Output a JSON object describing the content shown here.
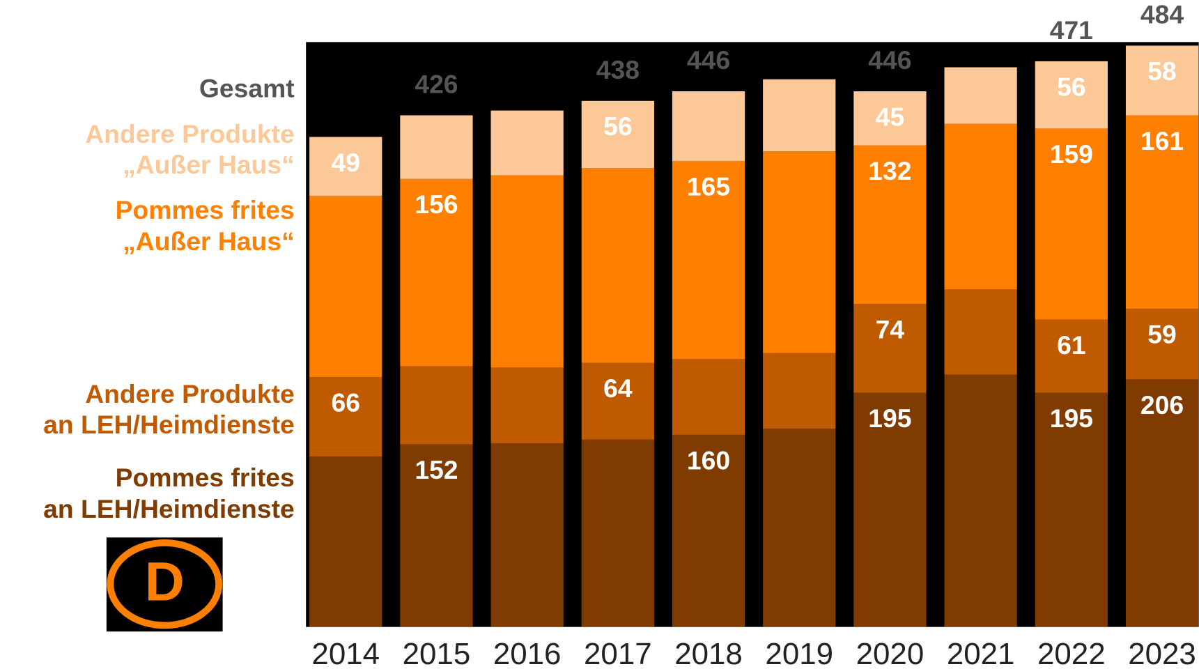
{
  "chart_data": {
    "type": "stacked-bar",
    "categories": [
      "2014",
      "2015",
      "2016",
      "2017",
      "2018",
      "2019",
      "2020",
      "2021",
      "2022",
      "2023"
    ],
    "series": [
      {
        "name": [
          "Pommes frites",
          "an LEH/Heimdienste"
        ],
        "color": "#7f3b00",
        "values": [
          142,
          152,
          153,
          156,
          160,
          165,
          195,
          210,
          195,
          206
        ],
        "value_labels": [
          null,
          "152",
          null,
          null,
          "160",
          null,
          "195",
          null,
          "195",
          "206"
        ]
      },
      {
        "name": [
          "Andere Produkte",
          "an LEH/Heimdienste"
        ],
        "color": "#c05a00",
        "values": [
          66,
          65,
          63,
          64,
          63,
          63,
          74,
          71,
          61,
          59
        ],
        "value_labels": [
          "66",
          null,
          null,
          "64",
          null,
          null,
          "74",
          null,
          "61",
          "59"
        ]
      },
      {
        "name": [
          "Pommes frites",
          "„Außer Haus“"
        ],
        "color": "#ff7f00",
        "values": [
          151,
          156,
          160,
          162,
          165,
          168,
          132,
          138,
          159,
          161
        ],
        "value_labels": [
          null,
          "156",
          null,
          null,
          "165",
          null,
          "132",
          null,
          "159",
          "161"
        ]
      },
      {
        "name": [
          "Andere Produkte",
          "„Außer Haus“"
        ],
        "color": "#fdc898",
        "values": [
          49,
          53,
          54,
          56,
          58,
          60,
          45,
          47,
          56,
          58
        ],
        "value_labels": [
          "49",
          null,
          null,
          "56",
          null,
          null,
          "45",
          null,
          "56",
          "58"
        ]
      }
    ],
    "total_label": "Gesamt",
    "total_color": "#555555",
    "totals": [
      null,
      426,
      null,
      438,
      446,
      null,
      446,
      null,
      471,
      484
    ],
    "ylim": [
      0,
      487
    ],
    "logo": "D"
  }
}
